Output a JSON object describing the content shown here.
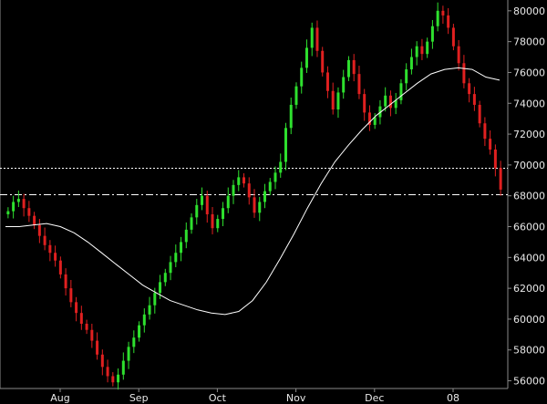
{
  "chart_data": {
    "type": "candlestick",
    "x_labels": [
      "Aug",
      "Sep",
      "Oct",
      "Nov",
      "Dec",
      "08"
    ],
    "y_ticks": [
      56000,
      58000,
      60000,
      62000,
      64000,
      66000,
      68000,
      70000,
      72000,
      74000,
      76000,
      78000,
      80000
    ],
    "ylim": [
      55500,
      80700
    ],
    "grid": false,
    "colors": {
      "background": "#000000",
      "up": "#2ee02e",
      "down": "#e02020",
      "moving_average": "#ffffff",
      "reference": "#ffffff",
      "axis_text": "#e8e8e8",
      "frame": "#8a8a8a"
    },
    "reference_lines": [
      {
        "value": 69800,
        "style": "dotted"
      },
      {
        "value": 68100,
        "style": "dash-dot"
      }
    ],
    "candles_close": [
      67000,
      67600,
      67800,
      67200,
      66700,
      66100,
      65400,
      64800,
      64300,
      63800,
      62900,
      62000,
      61100,
      60400,
      59700,
      59300,
      58600,
      57700,
      56900,
      56300,
      55900,
      56400,
      57300,
      58200,
      58800,
      59600,
      60300,
      60900,
      61700,
      62400,
      63000,
      63700,
      64300,
      65000,
      65800,
      66600,
      67400,
      68000,
      66800,
      65900,
      66500,
      67200,
      68000,
      68700,
      69200,
      68800,
      67900,
      66900,
      67600,
      68300,
      68900,
      69500,
      70200,
      72400,
      73900,
      75100,
      76300,
      77600,
      78900,
      77400,
      76000,
      74800,
      73600,
      74700,
      75700,
      76800,
      75900,
      74600,
      73400,
      72600,
      73100,
      73800,
      74500,
      73700,
      74200,
      75300,
      76200,
      77000,
      77700,
      77200,
      78000,
      79000,
      80000,
      79700,
      78900,
      77700,
      76600,
      75300,
      74600,
      73900,
      72700,
      71700,
      71000,
      69800,
      68400
    ],
    "moving_average": [
      66000,
      66000,
      66100,
      66200,
      66000,
      65600,
      65000,
      64300,
      63600,
      62900,
      62200,
      61700,
      61200,
      60900,
      60600,
      60400,
      60300,
      60500,
      61200,
      62400,
      63900,
      65500,
      67200,
      68800,
      70200,
      71300,
      72300,
      73200,
      73900,
      74600,
      75300,
      75900,
      76200,
      76300,
      76200,
      75700,
      75500
    ]
  }
}
